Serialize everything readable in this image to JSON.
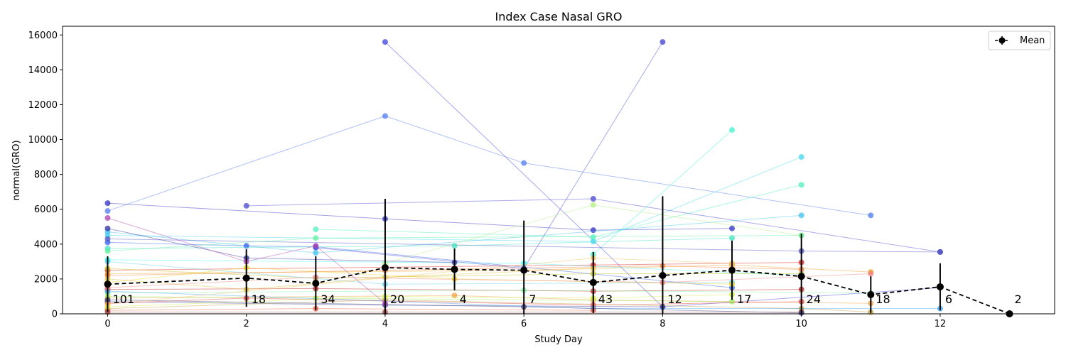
{
  "chart_data": {
    "type": "line",
    "title": "Index Case Nasal GRO",
    "xlabel": "Study Day",
    "ylabel": "normal(GRO)",
    "xlim": [
      -0.65,
      13.65
    ],
    "ylim": [
      0,
      16500
    ],
    "xticks": [
      0,
      2,
      4,
      6,
      8,
      10,
      12
    ],
    "yticks": [
      0,
      2000,
      4000,
      6000,
      8000,
      10000,
      12000,
      14000,
      16000
    ],
    "grid": false,
    "legend": {
      "placement": "top-right",
      "entries": [
        "Mean"
      ]
    },
    "mean": {
      "name": "Mean",
      "x": [
        0,
        2,
        3,
        4,
        5,
        6,
        7,
        8,
        9,
        10,
        11,
        12,
        13
      ],
      "y": [
        1700,
        2050,
        1750,
        2650,
        2550,
        2500,
        1800,
        2200,
        2500,
        2150,
        1100,
        1550,
        0
      ],
      "err": [
        1600,
        1650,
        1550,
        3950,
        1200,
        2850,
        1750,
        4550,
        1700,
        2450,
        1050,
        1350,
        0
      ]
    },
    "counts": {
      "x": [
        0,
        2,
        3,
        4,
        5,
        6,
        7,
        8,
        9,
        10,
        11,
        12,
        13
      ],
      "labels": [
        "101",
        "18",
        "34",
        "20",
        "4",
        "7",
        "43",
        "12",
        "17",
        "24",
        "18",
        "6",
        "2"
      ]
    },
    "subjects": [
      {
        "color": "#4040e0",
        "x": [
          4,
          8,
          12
        ],
        "y": [
          15600,
          400,
          1500
        ]
      },
      {
        "color": "#4040d0",
        "x": [
          3,
          6,
          8
        ],
        "y": [
          3800,
          2600,
          15600
        ]
      },
      {
        "color": "#4f7af0",
        "x": [
          0,
          4,
          6,
          11
        ],
        "y": [
          5900,
          11350,
          8650,
          5650
        ]
      },
      {
        "color": "#3030c0",
        "x": [
          0,
          4,
          7,
          9
        ],
        "y": [
          6350,
          5450,
          4800,
          4900
        ]
      },
      {
        "color": "#4848d0",
        "x": [
          2,
          7,
          12
        ],
        "y": [
          6200,
          6600,
          3550
        ]
      },
      {
        "color": "#40f0d0",
        "x": [
          7,
          9
        ],
        "y": [
          3400,
          10550
        ]
      },
      {
        "color": "#40d8f0",
        "x": [
          0,
          7,
          10
        ],
        "y": [
          4500,
          4150,
          9000
        ]
      },
      {
        "color": "#50f0c0",
        "x": [
          3,
          7,
          10
        ],
        "y": [
          4850,
          4400,
          7400
        ]
      },
      {
        "color": "#40c0f0",
        "x": [
          0,
          3,
          10
        ],
        "y": [
          4700,
          3500,
          5650
        ]
      },
      {
        "color": "#b0f080",
        "x": [
          4,
          7,
          10
        ],
        "y": [
          2900,
          6250,
          4500
        ]
      },
      {
        "color": "#3060f0",
        "x": [
          0,
          2,
          3,
          9
        ],
        "y": [
          4100,
          3900,
          3850,
          1500
        ]
      },
      {
        "color": "#5050c0",
        "x": [
          0,
          10,
          12
        ],
        "y": [
          4300,
          3600,
          3550
        ]
      },
      {
        "color": "#40e0c0",
        "x": [
          0,
          5,
          9
        ],
        "y": [
          3750,
          3900,
          4350
        ]
      },
      {
        "color": "#e02020",
        "x": [
          0,
          7,
          10
        ],
        "y": [
          2500,
          2800,
          2950
        ]
      },
      {
        "color": "#f0a020",
        "x": [
          0,
          6,
          9,
          11
        ],
        "y": [
          2300,
          2500,
          2800,
          2400
        ]
      },
      {
        "color": "#c0c020",
        "x": [
          0,
          3,
          7,
          10
        ],
        "y": [
          2600,
          2050,
          2300,
          2300
        ]
      },
      {
        "color": "#f08040",
        "x": [
          0,
          4,
          8,
          10
        ],
        "y": [
          2200,
          2500,
          2750,
          2550
        ]
      },
      {
        "color": "#60d0f0",
        "x": [
          0,
          4,
          9
        ],
        "y": [
          3000,
          1700,
          1800
        ]
      },
      {
        "color": "#f0d020",
        "x": [
          0,
          2,
          5,
          9
        ],
        "y": [
          1800,
          2650,
          2000,
          1700
        ]
      },
      {
        "color": "#c02020",
        "x": [
          0,
          3,
          7,
          10
        ],
        "y": [
          1400,
          1450,
          1300,
          1400
        ]
      },
      {
        "color": "#80f0a0",
        "x": [
          0,
          6,
          11
        ],
        "y": [
          1200,
          1350,
          1200
        ]
      },
      {
        "color": "#4040a0",
        "x": [
          0,
          4,
          8
        ],
        "y": [
          700,
          500,
          400
        ]
      },
      {
        "color": "#f0a040",
        "x": [
          0,
          5,
          7,
          11
        ],
        "y": [
          900,
          1050,
          800,
          600
        ]
      },
      {
        "color": "#a0f060",
        "x": [
          0,
          3,
          9
        ],
        "y": [
          1000,
          900,
          700
        ]
      },
      {
        "color": "#e04040",
        "x": [
          0,
          2,
          7,
          10
        ],
        "y": [
          600,
          900,
          500,
          700
        ]
      },
      {
        "color": "#c0a040",
        "x": [
          0,
          4,
          10,
          11
        ],
        "y": [
          300,
          800,
          300,
          100
        ]
      },
      {
        "color": "#40a0f0",
        "x": [
          0,
          7,
          12
        ],
        "y": [
          1300,
          300,
          300
        ]
      },
      {
        "color": "#f06040",
        "x": [
          0,
          3,
          7
        ],
        "y": [
          200,
          300,
          200
        ]
      },
      {
        "color": "#a04040",
        "x": [
          0,
          4,
          10
        ],
        "y": [
          100,
          100,
          100
        ]
      },
      {
        "color": "#404080",
        "x": [
          0,
          6,
          10
        ],
        "y": [
          800,
          400,
          50
        ]
      },
      {
        "color": "#e0c040",
        "x": [
          0,
          2,
          4,
          7
        ],
        "y": [
          2000,
          1400,
          2100,
          2600
        ]
      },
      {
        "color": "#f08080",
        "x": [
          0,
          3,
          8,
          11
        ],
        "y": [
          1500,
          2100,
          1800,
          2300
        ]
      },
      {
        "color": "#40f0f0",
        "x": [
          0,
          6,
          10
        ],
        "y": [
          3100,
          2900,
          2200
        ]
      },
      {
        "color": "#3030a0",
        "x": [
          0,
          2,
          5
        ],
        "y": [
          4900,
          3200,
          2950
        ]
      },
      {
        "color": "#d0f040",
        "x": [
          0,
          4,
          7,
          9
        ],
        "y": [
          400,
          1000,
          900,
          1100
        ]
      },
      {
        "color": "#60f0a0",
        "x": [
          0,
          3,
          10
        ],
        "y": [
          3600,
          4350,
          4500
        ]
      },
      {
        "color": "#f0c060",
        "x": [
          0,
          7,
          9
        ],
        "y": [
          550,
          3200,
          2900
        ]
      },
      {
        "color": "#b040b0",
        "x": [
          0,
          2,
          3,
          4
        ],
        "y": [
          5500,
          3000,
          3900,
          600
        ]
      }
    ]
  }
}
